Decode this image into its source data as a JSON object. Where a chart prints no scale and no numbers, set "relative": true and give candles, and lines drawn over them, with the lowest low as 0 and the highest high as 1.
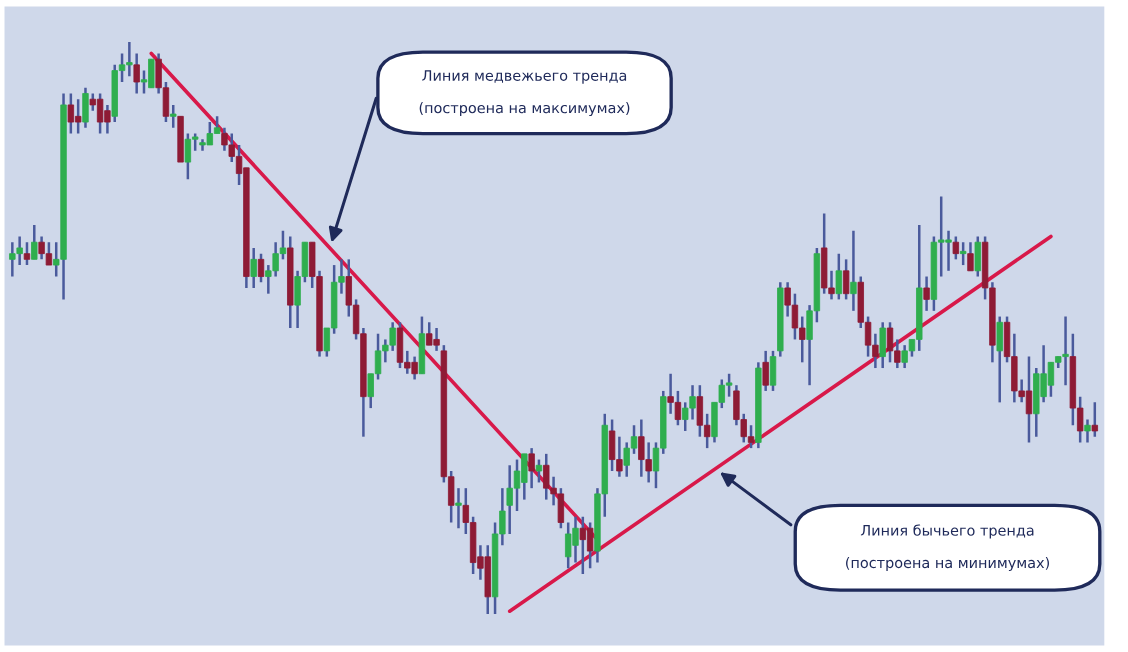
{
  "chart_data": {
    "type": "candlestick",
    "relative": true,
    "categories": [
      null,
      null,
      null,
      null,
      null,
      null,
      null,
      null,
      null,
      null,
      null,
      null,
      null,
      null,
      null,
      null,
      null,
      null,
      null,
      null,
      null,
      null,
      null,
      null,
      null,
      null,
      null,
      null,
      null,
      null,
      null,
      null,
      null,
      null,
      null,
      null,
      null,
      null,
      null,
      null,
      null,
      null,
      null,
      null,
      null,
      null,
      null,
      null,
      null,
      null,
      null,
      null,
      null,
      null,
      null,
      null,
      null,
      null,
      null,
      null,
      null,
      null,
      null,
      null,
      null,
      null,
      null,
      null,
      null,
      null,
      null,
      null,
      null,
      null,
      null,
      null,
      null,
      null,
      null,
      null,
      null,
      null,
      null,
      null,
      null,
      null,
      null,
      null,
      null,
      null,
      null,
      null,
      null,
      null,
      null,
      null,
      null,
      null,
      null,
      null,
      null,
      null,
      null,
      null,
      null,
      null,
      null,
      null,
      null,
      null,
      null,
      null,
      null,
      null,
      null,
      null,
      null,
      null,
      null,
      null,
      null,
      null,
      null,
      null,
      null,
      null,
      null,
      null,
      null,
      null,
      null,
      null,
      null,
      null,
      null,
      null,
      null,
      null,
      null,
      null,
      null,
      null,
      null,
      null,
      null,
      null,
      null,
      null,
      null
    ],
    "ohlc": [
      [
        0.62,
        0.65,
        0.59,
        0.63
      ],
      [
        0.63,
        0.66,
        0.61,
        0.64
      ],
      [
        0.63,
        0.65,
        0.61,
        0.62
      ],
      [
        0.62,
        0.68,
        0.62,
        0.65
      ],
      [
        0.65,
        0.66,
        0.62,
        0.63
      ],
      [
        0.63,
        0.65,
        0.61,
        0.61
      ],
      [
        0.61,
        0.65,
        0.59,
        0.62
      ],
      [
        0.62,
        0.91,
        0.55,
        0.89
      ],
      [
        0.89,
        0.91,
        0.84,
        0.86
      ],
      [
        0.87,
        0.9,
        0.84,
        0.86
      ],
      [
        0.86,
        0.92,
        0.85,
        0.91
      ],
      [
        0.9,
        0.91,
        0.88,
        0.89
      ],
      [
        0.9,
        0.91,
        0.84,
        0.86
      ],
      [
        0.88,
        0.89,
        0.84,
        0.86
      ],
      [
        0.87,
        0.96,
        0.86,
        0.95
      ],
      [
        0.95,
        0.98,
        0.93,
        0.96
      ],
      [
        0.96,
        1.0,
        0.94,
        0.96
      ],
      [
        0.96,
        0.98,
        0.91,
        0.93
      ],
      [
        0.93,
        0.95,
        0.91,
        0.93
      ],
      [
        0.92,
        0.97,
        0.92,
        0.97
      ],
      [
        0.97,
        0.98,
        0.91,
        0.92
      ],
      [
        0.92,
        0.93,
        0.86,
        0.87
      ],
      [
        0.87,
        0.89,
        0.85,
        0.87
      ],
      [
        0.87,
        0.87,
        0.79,
        0.79
      ],
      [
        0.79,
        0.84,
        0.76,
        0.83
      ],
      [
        0.83,
        0.84,
        0.81,
        0.83
      ],
      [
        0.82,
        0.83,
        0.81,
        0.82
      ],
      [
        0.82,
        0.86,
        0.82,
        0.84
      ],
      [
        0.84,
        0.87,
        0.84,
        0.85
      ],
      [
        0.84,
        0.85,
        0.81,
        0.82
      ],
      [
        0.82,
        0.84,
        0.79,
        0.8
      ],
      [
        0.8,
        0.82,
        0.75,
        0.77
      ],
      [
        0.78,
        0.78,
        0.57,
        0.59
      ],
      [
        0.59,
        0.64,
        0.57,
        0.62
      ],
      [
        0.62,
        0.63,
        0.58,
        0.59
      ],
      [
        0.59,
        0.61,
        0.56,
        0.6
      ],
      [
        0.6,
        0.65,
        0.59,
        0.63
      ],
      [
        0.63,
        0.67,
        0.62,
        0.64
      ],
      [
        0.64,
        0.66,
        0.5,
        0.54
      ],
      [
        0.54,
        0.6,
        0.5,
        0.59
      ],
      [
        0.59,
        0.65,
        0.58,
        0.65
      ],
      [
        0.65,
        0.65,
        0.57,
        0.59
      ],
      [
        0.59,
        0.6,
        0.45,
        0.46
      ],
      [
        0.46,
        0.5,
        0.45,
        0.5
      ],
      [
        0.5,
        0.61,
        0.49,
        0.58
      ],
      [
        0.58,
        0.62,
        0.56,
        0.59
      ],
      [
        0.59,
        0.62,
        0.52,
        0.54
      ],
      [
        0.54,
        0.55,
        0.48,
        0.49
      ],
      [
        0.49,
        0.5,
        0.31,
        0.38
      ],
      [
        0.38,
        0.42,
        0.36,
        0.42
      ],
      [
        0.42,
        0.49,
        0.41,
        0.46
      ],
      [
        0.46,
        0.48,
        0.44,
        0.47
      ],
      [
        0.47,
        0.51,
        0.46,
        0.5
      ],
      [
        0.5,
        0.51,
        0.43,
        0.44
      ],
      [
        0.44,
        0.46,
        0.42,
        0.43
      ],
      [
        0.44,
        0.45,
        0.41,
        0.42
      ],
      [
        0.42,
        0.52,
        0.42,
        0.49
      ],
      [
        0.49,
        0.51,
        0.47,
        0.47
      ],
      [
        0.48,
        0.5,
        0.46,
        0.47
      ],
      [
        0.46,
        0.47,
        0.23,
        0.24
      ],
      [
        0.24,
        0.25,
        0.16,
        0.19
      ],
      [
        0.19,
        0.22,
        0.15,
        0.19
      ],
      [
        0.19,
        0.22,
        0.14,
        0.16
      ],
      [
        0.16,
        0.17,
        0.07,
        0.09
      ],
      [
        0.1,
        0.12,
        0.06,
        0.08
      ],
      [
        0.1,
        0.12,
        0.0,
        0.03
      ],
      [
        0.03,
        0.16,
        0.0,
        0.14
      ],
      [
        0.14,
        0.22,
        0.12,
        0.18
      ],
      [
        0.19,
        0.26,
        0.14,
        0.22
      ],
      [
        0.22,
        0.27,
        0.18,
        0.25
      ],
      [
        0.23,
        0.28,
        0.2,
        0.28
      ],
      [
        0.28,
        0.29,
        0.22,
        0.25
      ],
      [
        0.25,
        0.27,
        0.23,
        0.26
      ],
      [
        0.26,
        0.28,
        0.2,
        0.22
      ],
      [
        0.22,
        0.24,
        0.19,
        0.21
      ],
      [
        0.21,
        0.22,
        0.15,
        0.16
      ],
      [
        0.1,
        0.16,
        0.08,
        0.14
      ],
      [
        0.12,
        0.17,
        0.09,
        0.15
      ],
      [
        0.15,
        0.17,
        0.07,
        0.13
      ],
      [
        0.15,
        0.16,
        0.08,
        0.11
      ],
      [
        0.11,
        0.22,
        0.09,
        0.21
      ],
      [
        0.21,
        0.35,
        0.17,
        0.33
      ],
      [
        0.32,
        0.34,
        0.25,
        0.27
      ],
      [
        0.27,
        0.31,
        0.24,
        0.25
      ],
      [
        0.26,
        0.3,
        0.24,
        0.29
      ],
      [
        0.29,
        0.33,
        0.28,
        0.31
      ],
      [
        0.31,
        0.34,
        0.24,
        0.27
      ],
      [
        0.27,
        0.3,
        0.23,
        0.25
      ],
      [
        0.25,
        0.3,
        0.22,
        0.29
      ],
      [
        0.29,
        0.39,
        0.28,
        0.38
      ],
      [
        0.38,
        0.42,
        0.35,
        0.37
      ],
      [
        0.37,
        0.39,
        0.33,
        0.34
      ],
      [
        0.34,
        0.37,
        0.32,
        0.36
      ],
      [
        0.36,
        0.4,
        0.34,
        0.38
      ],
      [
        0.38,
        0.4,
        0.31,
        0.33
      ],
      [
        0.33,
        0.35,
        0.29,
        0.31
      ],
      [
        0.31,
        0.37,
        0.3,
        0.37
      ],
      [
        0.37,
        0.41,
        0.36,
        0.4
      ],
      [
        0.4,
        0.42,
        0.38,
        0.4
      ],
      [
        0.39,
        0.4,
        0.33,
        0.34
      ],
      [
        0.34,
        0.35,
        0.3,
        0.31
      ],
      [
        0.31,
        0.33,
        0.29,
        0.3
      ],
      [
        0.3,
        0.44,
        0.29,
        0.43
      ],
      [
        0.44,
        0.46,
        0.39,
        0.4
      ],
      [
        0.4,
        0.46,
        0.39,
        0.45
      ],
      [
        0.46,
        0.58,
        0.45,
        0.57
      ],
      [
        0.57,
        0.58,
        0.52,
        0.54
      ],
      [
        0.54,
        0.56,
        0.48,
        0.5
      ],
      [
        0.5,
        0.52,
        0.44,
        0.48
      ],
      [
        0.48,
        0.54,
        0.4,
        0.53
      ],
      [
        0.53,
        0.64,
        0.51,
        0.63
      ],
      [
        0.64,
        0.7,
        0.56,
        0.57
      ],
      [
        0.57,
        0.6,
        0.55,
        0.56
      ],
      [
        0.56,
        0.63,
        0.55,
        0.6
      ],
      [
        0.6,
        0.62,
        0.55,
        0.56
      ],
      [
        0.56,
        0.67,
        0.53,
        0.58
      ],
      [
        0.58,
        0.59,
        0.5,
        0.51
      ],
      [
        0.51,
        0.52,
        0.45,
        0.47
      ],
      [
        0.47,
        0.49,
        0.43,
        0.45
      ],
      [
        0.45,
        0.51,
        0.43,
        0.5
      ],
      [
        0.5,
        0.51,
        0.44,
        0.46
      ],
      [
        0.46,
        0.48,
        0.43,
        0.44
      ],
      [
        0.44,
        0.47,
        0.43,
        0.46
      ],
      [
        0.46,
        0.48,
        0.45,
        0.48
      ],
      [
        0.48,
        0.68,
        0.46,
        0.57
      ],
      [
        0.57,
        0.59,
        0.53,
        0.55
      ],
      [
        0.55,
        0.66,
        0.53,
        0.65
      ],
      [
        0.65,
        0.73,
        0.59,
        0.65
      ],
      [
        0.65,
        0.67,
        0.6,
        0.65
      ],
      [
        0.65,
        0.66,
        0.62,
        0.63
      ],
      [
        0.63,
        0.65,
        0.61,
        0.63
      ],
      [
        0.63,
        0.65,
        0.6,
        0.6
      ],
      [
        0.6,
        0.66,
        0.59,
        0.65
      ],
      [
        0.65,
        0.66,
        0.55,
        0.57
      ],
      [
        0.57,
        0.58,
        0.44,
        0.47
      ],
      [
        0.46,
        0.52,
        0.37,
        0.51
      ],
      [
        0.51,
        0.52,
        0.44,
        0.45
      ],
      [
        0.45,
        0.49,
        0.37,
        0.39
      ],
      [
        0.39,
        0.41,
        0.37,
        0.38
      ],
      [
        0.39,
        0.45,
        0.3,
        0.35
      ],
      [
        0.35,
        0.43,
        0.31,
        0.42
      ],
      [
        0.38,
        0.47,
        0.37,
        0.42
      ],
      [
        0.4,
        0.44,
        0.38,
        0.44
      ],
      [
        0.44,
        0.45,
        0.43,
        0.45
      ],
      [
        0.45,
        0.52,
        0.4,
        0.45
      ],
      [
        0.45,
        0.49,
        0.33,
        0.36
      ],
      [
        0.36,
        0.38,
        0.3,
        0.32
      ],
      [
        0.32,
        0.34,
        0.3,
        0.33
      ],
      [
        0.33,
        0.37,
        0.31,
        0.32
      ]
    ],
    "colors": [
      "#2fae4e",
      "#2fae4e",
      "#8e1b35",
      "#2fae4e",
      "#8e1b35",
      "#8e1b35",
      "#2fae4e",
      "#2fae4e",
      "#8e1b35",
      "#8e1b35",
      "#2fae4e",
      "#8e1b35",
      "#8e1b35",
      "#8e1b35",
      "#2fae4e",
      "#2fae4e",
      "#2fae4e",
      "#8e1b35",
      "#2fae4e",
      "#2fae4e",
      "#8e1b35",
      "#8e1b35",
      "#2fae4e",
      "#8e1b35",
      "#2fae4e",
      "#2fae4e",
      "#2fae4e",
      "#2fae4e",
      "#2fae4e",
      "#8e1b35",
      "#8e1b35",
      "#8e1b35",
      "#8e1b35",
      "#2fae4e",
      "#8e1b35",
      "#2fae4e",
      "#2fae4e",
      "#2fae4e",
      "#8e1b35",
      "#2fae4e",
      "#2fae4e",
      "#8e1b35",
      "#8e1b35",
      "#2fae4e",
      "#2fae4e",
      "#2fae4e",
      "#8e1b35",
      "#8e1b35",
      "#8e1b35",
      "#2fae4e",
      "#2fae4e",
      "#2fae4e",
      "#2fae4e",
      "#8e1b35",
      "#8e1b35",
      "#8e1b35",
      "#2fae4e",
      "#8e1b35",
      "#8e1b35",
      "#8e1b35",
      "#8e1b35",
      "#2fae4e",
      "#8e1b35",
      "#8e1b35",
      "#8e1b35",
      "#8e1b35",
      "#2fae4e",
      "#2fae4e",
      "#2fae4e",
      "#2fae4e",
      "#2fae4e",
      "#8e1b35",
      "#2fae4e",
      "#8e1b35",
      "#8e1b35",
      "#8e1b35",
      "#2fae4e",
      "#2fae4e",
      "#8e1b35",
      "#8e1b35",
      "#2fae4e",
      "#2fae4e",
      "#8e1b35",
      "#8e1b35",
      "#2fae4e",
      "#2fae4e",
      "#8e1b35",
      "#8e1b35",
      "#2fae4e",
      "#2fae4e",
      "#8e1b35",
      "#8e1b35",
      "#2fae4e",
      "#2fae4e",
      "#8e1b35",
      "#8e1b35",
      "#2fae4e",
      "#2fae4e",
      "#2fae4e",
      "#8e1b35",
      "#8e1b35",
      "#8e1b35",
      "#2fae4e",
      "#8e1b35",
      "#2fae4e",
      "#2fae4e",
      "#8e1b35",
      "#8e1b35",
      "#8e1b35",
      "#2fae4e",
      "#2fae4e",
      "#8e1b35",
      "#8e1b35",
      "#2fae4e",
      "#8e1b35",
      "#2fae4e",
      "#8e1b35",
      "#8e1b35",
      "#8e1b35",
      "#2fae4e",
      "#8e1b35",
      "#8e1b35",
      "#2fae4e",
      "#2fae4e",
      "#2fae4e",
      "#8e1b35",
      "#2fae4e",
      "#2fae4e",
      "#2fae4e",
      "#8e1b35",
      "#2fae4e",
      "#8e1b35",
      "#2fae4e",
      "#8e1b35",
      "#8e1b35",
      "#2fae4e",
      "#8e1b35",
      "#8e1b35",
      "#8e1b35",
      "#8e1b35",
      "#2fae4e",
      "#2fae4e",
      "#2fae4e",
      "#2fae4e",
      "#2fae4e",
      "#8e1b35",
      "#8e1b35",
      "#2fae4e",
      "#8e1b35"
    ],
    "series": [
      {
        "type": "line",
        "color": "#d8194a",
        "values": [
          null,
          null,
          null,
          null,
          null,
          null,
          null,
          null,
          null,
          null,
          null,
          null,
          null,
          null,
          null,
          null,
          null,
          null,
          null,
          0.98,
          null,
          null,
          null,
          null,
          null,
          null,
          null,
          null,
          null,
          null,
          null,
          null,
          null,
          null,
          null,
          null,
          null,
          null,
          null,
          null,
          null,
          null,
          null,
          null,
          null,
          null,
          null,
          null,
          null,
          null,
          null,
          null,
          null,
          null,
          null,
          null,
          null,
          null,
          null,
          null,
          null,
          null,
          null,
          null,
          null,
          null,
          null,
          null,
          null,
          null,
          null,
          null,
          null,
          null,
          null,
          null,
          null,
          null,
          null,
          null,
          0.13,
          null,
          null,
          null,
          null,
          null,
          null,
          null,
          null,
          null,
          null,
          null,
          null,
          null,
          null,
          null,
          null,
          null,
          null,
          null,
          null,
          null,
          null,
          null,
          null,
          null,
          null,
          null,
          null,
          null,
          null,
          null,
          null,
          null,
          null,
          null,
          null,
          null,
          null,
          null,
          null,
          null,
          null,
          null,
          null,
          null,
          null,
          null,
          null,
          null,
          null,
          null,
          null,
          null,
          null,
          null,
          null,
          null,
          null,
          null,
          null,
          null,
          null,
          null,
          null,
          null,
          null,
          null,
          null
        ]
      },
      {
        "type": "line",
        "color": "#d8194a",
        "values": [
          null,
          null,
          null,
          null,
          null,
          null,
          null,
          null,
          null,
          null,
          null,
          null,
          null,
          null,
          null,
          null,
          null,
          null,
          null,
          null,
          null,
          null,
          null,
          null,
          null,
          null,
          null,
          null,
          null,
          null,
          null,
          null,
          null,
          null,
          null,
          null,
          null,
          null,
          null,
          null,
          null,
          null,
          null,
          null,
          null,
          null,
          null,
          null,
          null,
          null,
          null,
          null,
          null,
          null,
          null,
          null,
          null,
          null,
          null,
          null,
          null,
          null,
          null,
          null,
          null,
          null,
          null,
          null,
          0.005,
          null,
          null,
          null,
          null,
          null,
          null,
          null,
          null,
          null,
          null,
          null,
          null,
          null,
          null,
          null,
          null,
          null,
          null,
          null,
          null,
          null,
          null,
          null,
          null,
          null,
          null,
          null,
          null,
          null,
          null,
          null,
          null,
          null,
          null,
          null,
          null,
          null,
          null,
          null,
          null,
          null,
          null,
          null,
          null,
          null,
          null,
          null,
          null,
          null,
          null,
          null,
          null,
          null,
          null,
          null,
          null,
          null,
          null,
          null,
          null,
          null,
          null,
          null,
          null,
          null,
          null,
          null,
          null,
          null,
          null,
          null,
          null,
          null,
          0.66,
          null,
          null,
          null,
          null,
          null,
          null
        ]
      }
    ],
    "annotations": [
      "Линия медвежьего тренда\n\n(построена на максимумах)",
      "Линия бычьего тренда\n\n(построена на минимумах)"
    ]
  }
}
